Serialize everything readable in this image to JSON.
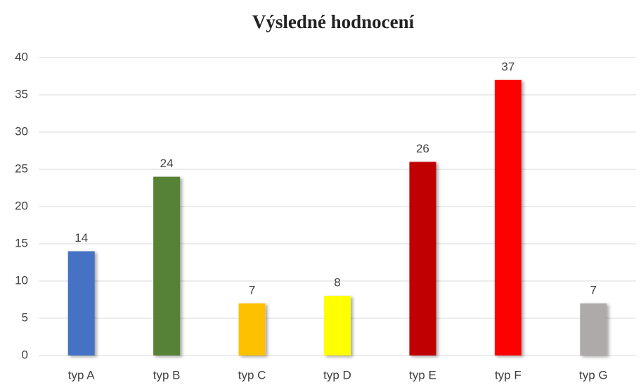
{
  "chart_data": {
    "type": "bar",
    "title": "Výsledné hodnocení",
    "categories": [
      "typ A",
      "typ B",
      "typ C",
      "typ D",
      "typ E",
      "typ F",
      "typ G"
    ],
    "values": [
      14,
      24,
      7,
      8,
      26,
      37,
      7
    ],
    "colors": [
      "#4472c4",
      "#548235",
      "#ffc000",
      "#ffff00",
      "#c00000",
      "#ff0000",
      "#aeaaaa"
    ],
    "ylim": [
      0,
      40
    ],
    "yticks": [
      0,
      5,
      10,
      15,
      20,
      25,
      30,
      35,
      40
    ],
    "grid": true
  }
}
